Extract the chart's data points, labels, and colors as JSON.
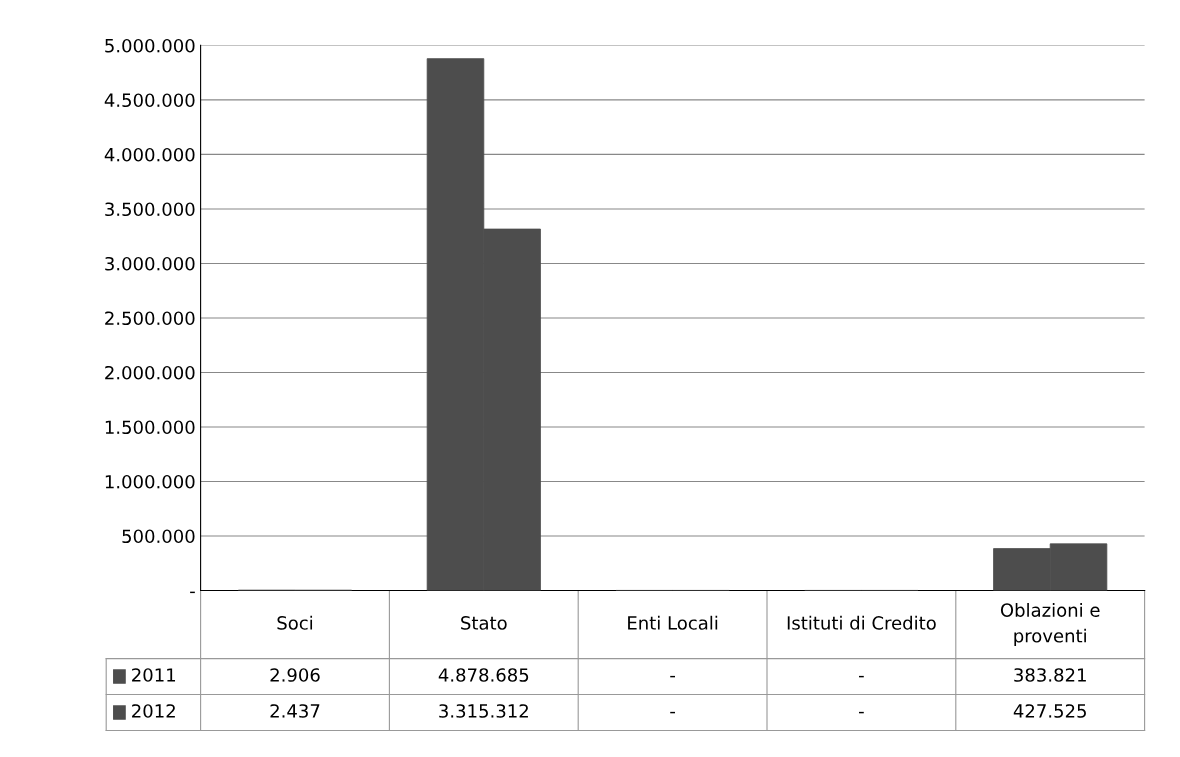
{
  "chart_data": {
    "type": "bar",
    "categories": [
      "Soci",
      "Stato",
      "Enti Locali",
      "Istituti di Credito",
      "Oblazioni e\nproventi"
    ],
    "series": [
      {
        "name": "2011",
        "color": "#4d4d4d",
        "values": [
          2906,
          4878685,
          0,
          0,
          383821
        ],
        "value_labels": [
          "2.906",
          "4.878.685",
          "-",
          "-",
          "383.821"
        ]
      },
      {
        "name": "2012",
        "color": "#4d4d4d",
        "values": [
          2437,
          3315312,
          0,
          0,
          427525
        ],
        "value_labels": [
          "2.437",
          "3.315.312",
          "-",
          "-",
          "427.525"
        ]
      }
    ],
    "ylim": [
      0,
      5000000
    ],
    "yticks": [
      {
        "value": 0,
        "label": "-"
      },
      {
        "value": 500000,
        "label": "500.000"
      },
      {
        "value": 1000000,
        "label": "1.000.000"
      },
      {
        "value": 1500000,
        "label": "1.500.000"
      },
      {
        "value": 2000000,
        "label": "2.000.000"
      },
      {
        "value": 2500000,
        "label": "2.500.000"
      },
      {
        "value": 3000000,
        "label": "3.000.000"
      },
      {
        "value": 3500000,
        "label": "3.500.000"
      },
      {
        "value": 4000000,
        "label": "4.000.000"
      },
      {
        "value": 4500000,
        "label": "4.500.000"
      },
      {
        "value": 5000000,
        "label": "5.000.000"
      }
    ],
    "grid": "y",
    "legend": "bottom"
  }
}
